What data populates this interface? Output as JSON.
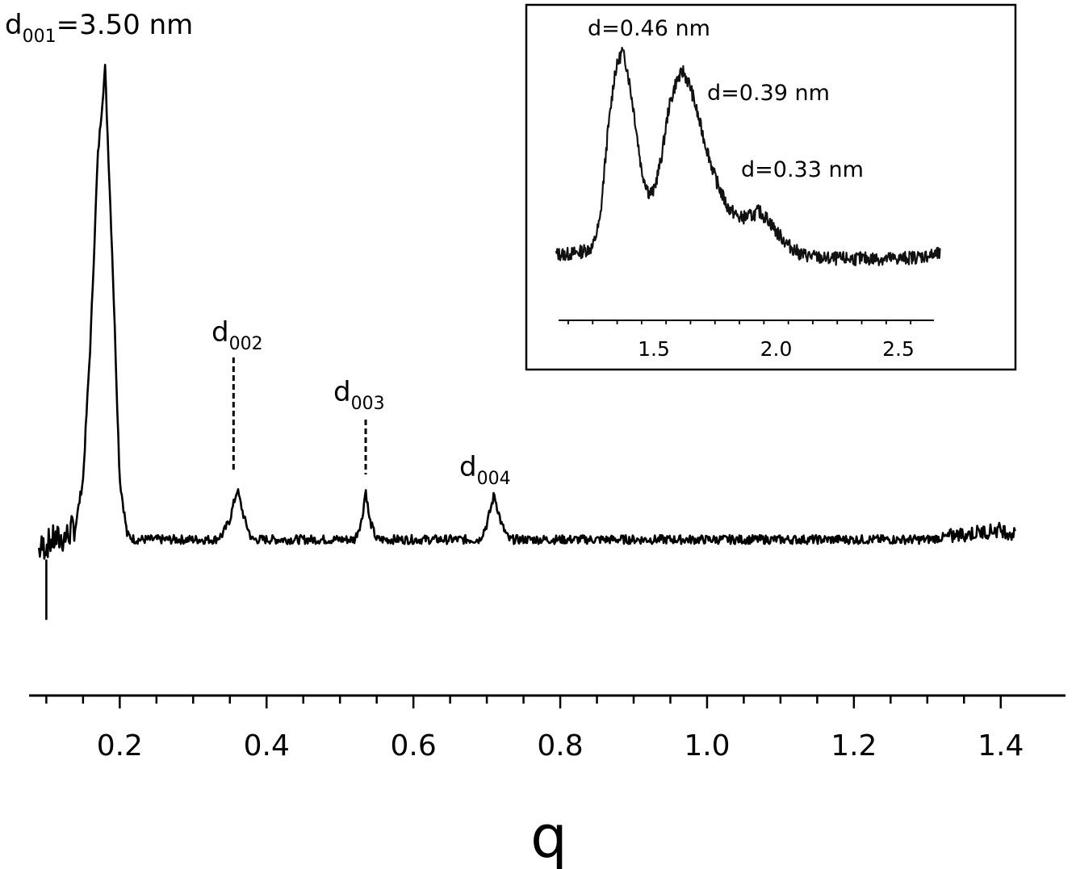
{
  "chart_data": [
    {
      "type": "line",
      "xlabel": "q",
      "ylabel": "",
      "xlim": [
        0.09,
        1.42
      ],
      "ylim": [
        0,
        1
      ],
      "grid": false,
      "ticks": [
        "0.2",
        "0.4",
        "0.6",
        "0.8",
        "1.0",
        "1.2",
        "1.4"
      ],
      "series": [
        {
          "x": [
            0.09,
            0.1,
            0.11,
            0.12,
            0.13,
            0.14,
            0.15,
            0.16,
            0.17,
            0.18,
            0.19,
            0.2,
            0.21,
            0.22,
            0.25,
            0.3,
            0.33,
            0.34,
            0.35,
            0.36,
            0.37,
            0.38,
            0.4,
            0.45,
            0.5,
            0.52,
            0.53,
            0.535,
            0.54,
            0.55,
            0.57,
            0.6,
            0.65,
            0.69,
            0.7,
            0.71,
            0.72,
            0.73,
            0.76,
            0.8,
            0.9,
            1.0,
            1.1,
            1.2,
            1.3,
            1.35,
            1.4,
            1.42
          ],
          "y": [
            0.04,
            0.05,
            0.06,
            0.06,
            0.07,
            0.09,
            0.18,
            0.45,
            0.82,
            1.0,
            0.62,
            0.18,
            0.07,
            0.06,
            0.06,
            0.06,
            0.06,
            0.07,
            0.1,
            0.16,
            0.1,
            0.06,
            0.06,
            0.06,
            0.06,
            0.06,
            0.1,
            0.16,
            0.1,
            0.06,
            0.06,
            0.06,
            0.06,
            0.06,
            0.09,
            0.15,
            0.09,
            0.06,
            0.06,
            0.06,
            0.06,
            0.06,
            0.06,
            0.06,
            0.06,
            0.07,
            0.08,
            0.07
          ]
        }
      ],
      "annotations": [
        {
          "base": "d",
          "sub": "001",
          "tail": "=3.50 nm",
          "x": 0.18
        },
        {
          "base": "d",
          "sub": "002",
          "tail": "",
          "x": 0.355
        },
        {
          "base": "d",
          "sub": "003",
          "tail": "",
          "x": 0.535
        },
        {
          "base": "d",
          "sub": "004",
          "tail": "",
          "x": 0.71
        }
      ]
    },
    {
      "type": "line",
      "xlabel": "",
      "ylabel": "",
      "xlim": [
        1.1,
        2.67
      ],
      "ylim": [
        0,
        1
      ],
      "grid": false,
      "ticks": [
        "1.5",
        "2.0",
        "2.5"
      ],
      "series": [
        {
          "x": [
            1.1,
            1.15,
            1.2,
            1.25,
            1.28,
            1.31,
            1.34,
            1.37,
            1.39,
            1.42,
            1.45,
            1.48,
            1.5,
            1.53,
            1.56,
            1.59,
            1.62,
            1.65,
            1.7,
            1.75,
            1.8,
            1.85,
            1.9,
            1.93,
            1.97,
            2.0,
            2.05,
            2.1,
            2.2,
            2.3,
            2.4,
            2.5,
            2.6,
            2.67
          ],
          "y": [
            0.1,
            0.1,
            0.11,
            0.13,
            0.25,
            0.62,
            0.9,
            1.0,
            0.93,
            0.72,
            0.47,
            0.37,
            0.38,
            0.52,
            0.74,
            0.86,
            0.91,
            0.84,
            0.63,
            0.44,
            0.31,
            0.26,
            0.27,
            0.29,
            0.25,
            0.2,
            0.14,
            0.1,
            0.08,
            0.08,
            0.08,
            0.08,
            0.09,
            0.1
          ]
        }
      ],
      "annotations": [
        {
          "text": "d=0.46 nm",
          "x": 1.39
        },
        {
          "text": "d=0.39 nm",
          "x": 1.62
        },
        {
          "text": "d=0.33 nm",
          "x": 1.93
        }
      ]
    }
  ]
}
